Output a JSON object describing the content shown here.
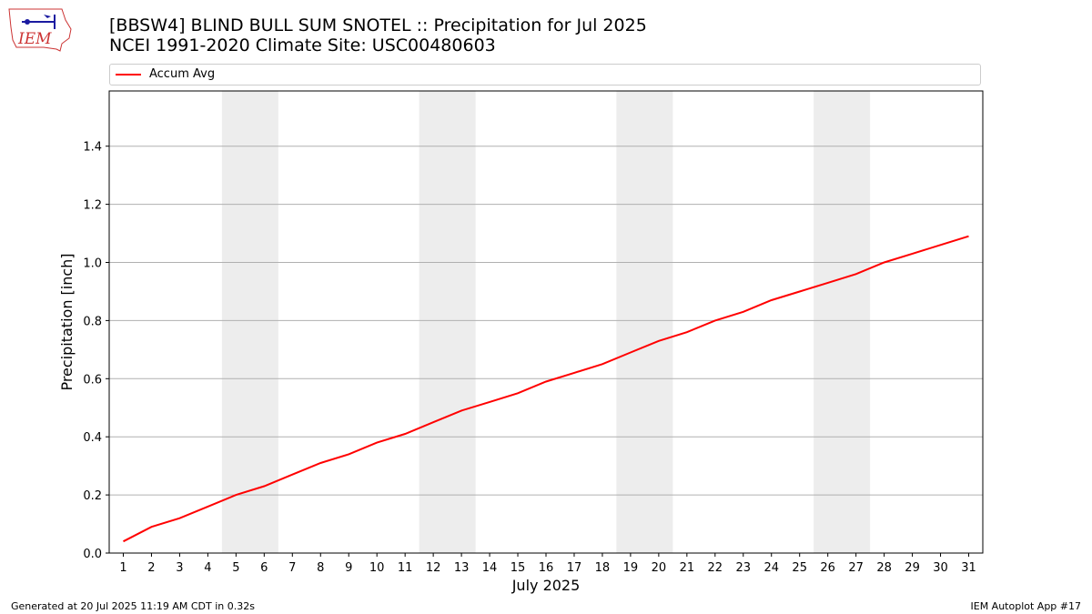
{
  "logo": {
    "text": "IEM"
  },
  "header": {
    "title_line1": "[BBSW4] BLIND BULL SUM SNOTEL :: Precipitation for Jul 2025",
    "title_line2": "NCEI 1991-2020 Climate Site: USC00480603"
  },
  "footer": {
    "generated": "Generated at 20 Jul 2025 11:19 AM CDT in 0.32s",
    "app": "IEM Autoplot App #17"
  },
  "colors": {
    "line": "#ff0000",
    "weekend": "#ededed",
    "grid": "#b0b0b0"
  },
  "chart_data": {
    "type": "line",
    "title": "[BBSW4] BLIND BULL SUM SNOTEL :: Precipitation for Jul 2025",
    "subtitle": "NCEI 1991-2020 Climate Site: USC00480603",
    "xlabel": "July 2025",
    "ylabel": "Precipitation [inch]",
    "xlim": [
      0.5,
      31.5
    ],
    "ylim": [
      0,
      1.59
    ],
    "yticks": [
      0.0,
      0.2,
      0.4,
      0.6,
      0.8,
      1.0,
      1.2,
      1.4
    ],
    "ytick_labels": [
      "0.0",
      "0.2",
      "0.4",
      "0.6",
      "0.8",
      "1.0",
      "1.2",
      "1.4"
    ],
    "x": [
      1,
      2,
      3,
      4,
      5,
      6,
      7,
      8,
      9,
      10,
      11,
      12,
      13,
      14,
      15,
      16,
      17,
      18,
      19,
      20,
      21,
      22,
      23,
      24,
      25,
      26,
      27,
      28,
      29,
      30,
      31
    ],
    "xtick_labels": [
      "1",
      "2",
      "3",
      "4",
      "5",
      "6",
      "7",
      "8",
      "9",
      "10",
      "11",
      "12",
      "13",
      "14",
      "15",
      "16",
      "17",
      "18",
      "19",
      "20",
      "21",
      "22",
      "23",
      "24",
      "25",
      "26",
      "27",
      "28",
      "29",
      "30",
      "31"
    ],
    "grid": "horizontal",
    "legend_position": "top",
    "shaded_weekends": [
      [
        5,
        6
      ],
      [
        12,
        13
      ],
      [
        19,
        20
      ],
      [
        26,
        27
      ]
    ],
    "series": [
      {
        "name": "Accum Avg",
        "color": "#ff0000",
        "values": [
          0.04,
          0.09,
          0.12,
          0.16,
          0.2,
          0.23,
          0.27,
          0.31,
          0.34,
          0.38,
          0.41,
          0.45,
          0.49,
          0.52,
          0.55,
          0.59,
          0.62,
          0.65,
          0.69,
          0.73,
          0.76,
          0.8,
          0.83,
          0.87,
          0.9,
          0.93,
          0.96,
          1.0,
          1.03,
          1.06,
          1.09
        ]
      }
    ]
  }
}
